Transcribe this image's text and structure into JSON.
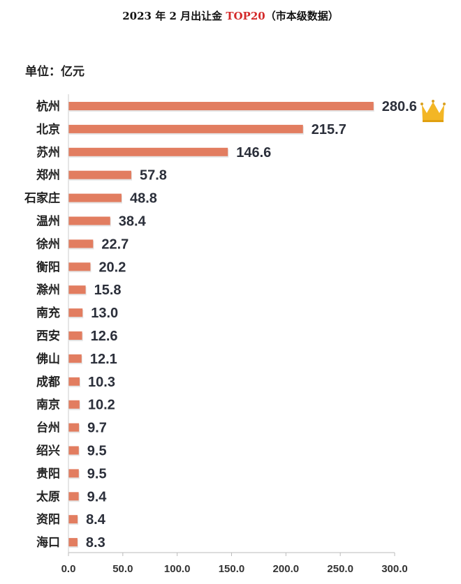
{
  "title": {
    "prefix": "2023 年 2 月出让金 ",
    "highlight": "TOP20",
    "suffix": "（市本级数据）"
  },
  "unit_label": "单位：亿元",
  "colors": {
    "bar": "#e27d60",
    "highlight": "#d42a2a",
    "crown": "#f3b625"
  },
  "chart_data": {
    "type": "bar",
    "orientation": "horizontal",
    "title": "2023 年 2 月出让金 TOP20（市本级数据）",
    "xlabel": "",
    "ylabel": "",
    "unit": "亿元",
    "categories": [
      "杭州",
      "北京",
      "苏州",
      "郑州",
      "石家庄",
      "温州",
      "徐州",
      "衡阳",
      "滁州",
      "南充",
      "西安",
      "佛山",
      "成都",
      "南京",
      "台州",
      "绍兴",
      "贵阳",
      "太原",
      "资阳",
      "海口"
    ],
    "values": [
      280.6,
      215.7,
      146.6,
      57.8,
      48.8,
      38.4,
      22.7,
      20.2,
      15.8,
      13.0,
      12.6,
      12.1,
      10.3,
      10.2,
      9.7,
      9.5,
      9.5,
      9.4,
      8.4,
      8.3
    ],
    "value_labels": [
      "280.6",
      "215.7",
      "146.6",
      "57.8",
      "48.8",
      "38.4",
      "22.7",
      "20.2",
      "15.8",
      "13.0",
      "12.6",
      "12.1",
      "10.3",
      "10.2",
      "9.7",
      "9.5",
      "9.5",
      "9.4",
      "8.4",
      "8.3"
    ],
    "xlim": [
      0,
      300
    ],
    "xticks": [
      "0.0",
      "50.0",
      "100.0",
      "150.0",
      "200.0",
      "250.0",
      "300.0"
    ],
    "xtick_values": [
      0,
      50,
      100,
      150,
      200,
      250,
      300
    ],
    "grid": false,
    "legend": "none",
    "annotation": "crown-icon on top value"
  }
}
